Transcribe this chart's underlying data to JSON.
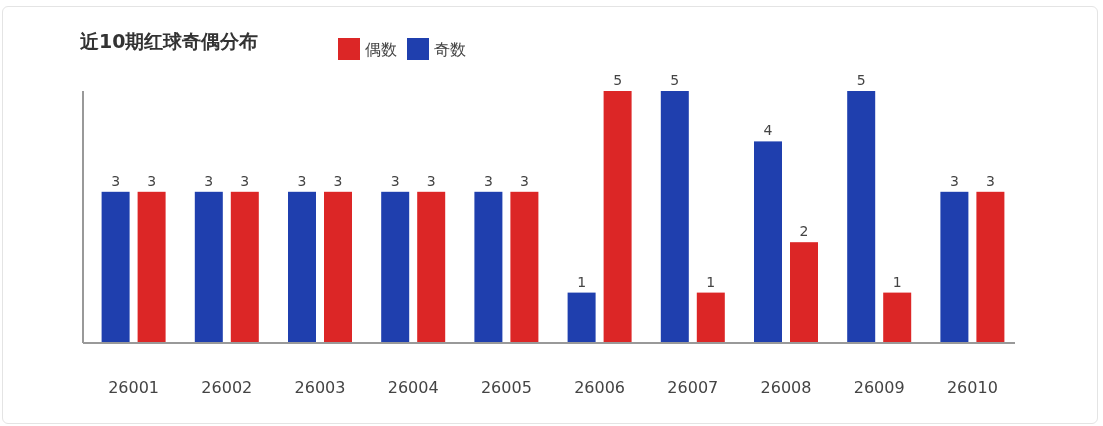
{
  "chart_data": {
    "type": "bar",
    "title": "近10期红球奇偶分布",
    "categories": [
      "26001",
      "26002",
      "26003",
      "26004",
      "26005",
      "26006",
      "26007",
      "26008",
      "26009",
      "26010"
    ],
    "series": [
      {
        "name": "奇数",
        "color": "#1f3fae",
        "values": [
          3,
          3,
          3,
          3,
          3,
          1,
          5,
          4,
          5,
          3
        ]
      },
      {
        "name": "偶数",
        "color": "#dc2626",
        "values": [
          3,
          3,
          3,
          3,
          3,
          5,
          1,
          2,
          1,
          3
        ]
      }
    ],
    "ylim": [
      0,
      5
    ],
    "tick_labels": "x",
    "data_labels": true,
    "legend": "top"
  }
}
